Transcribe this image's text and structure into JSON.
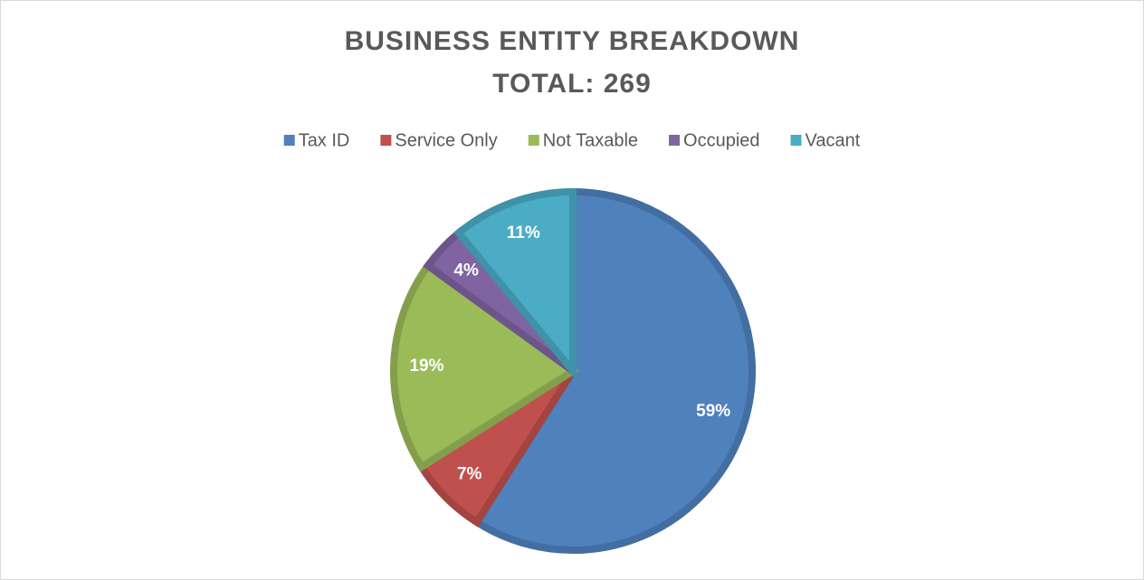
{
  "chart_data": {
    "type": "pie",
    "title": "BUSINESS ENTITY BREAKDOWN",
    "subtitle": "TOTAL: 269",
    "categories": [
      "Tax ID",
      "Service Only",
      "Not Taxable",
      "Occupied",
      "Vacant"
    ],
    "values": [
      59,
      7,
      19,
      4,
      11
    ],
    "value_labels": [
      "59%",
      "7%",
      "19%",
      "4%",
      "11%"
    ],
    "colors": [
      "#4f81bd",
      "#c0504d",
      "#9bbb59",
      "#8064a2",
      "#4bacc6"
    ],
    "legend": "top"
  }
}
